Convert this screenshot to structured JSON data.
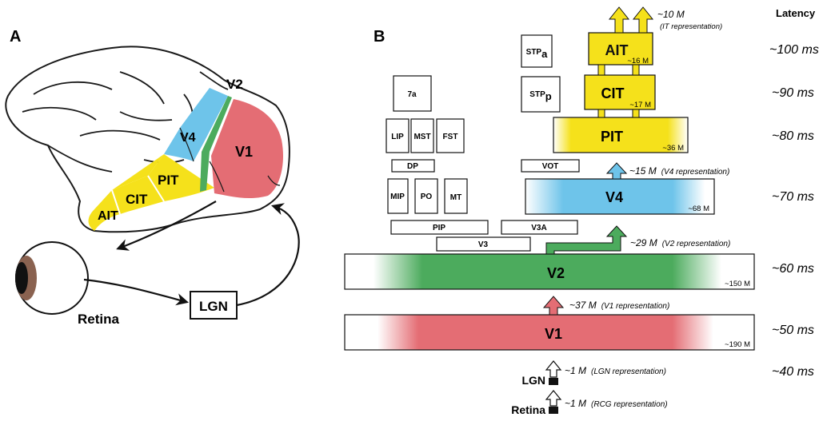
{
  "panel_a": {
    "label": "A",
    "areas": {
      "v2": "V2",
      "v4": "V4",
      "v1": "V1",
      "pit": "PIT",
      "cit": "CIT",
      "ait": "AIT"
    },
    "retina": "Retina",
    "lgn": "LGN"
  },
  "panel_b": {
    "label": "B",
    "latency_header": "Latency",
    "latencies": [
      "~100 ms",
      "~90 ms",
      "~80 ms",
      "~70 ms",
      "~60 ms",
      "~50 ms",
      "~40 ms"
    ],
    "small_areas": {
      "stpa_main": "STP",
      "stpa_sub": "a",
      "stpp_main": "STP",
      "stpp_sub": "p",
      "a7": "7a",
      "lip": "LIP",
      "mst": "MST",
      "fst": "FST",
      "dp": "DP",
      "vot": "VOT",
      "mip": "MIP",
      "po": "PO",
      "mt": "MT",
      "pip": "PIP",
      "v3a": "V3A",
      "v3": "V3"
    },
    "big_areas": {
      "ait": {
        "label": "AIT",
        "neurons": "~16 M"
      },
      "cit": {
        "label": "CIT",
        "neurons": "~17 M"
      },
      "pit": {
        "label": "PIT",
        "neurons": "~36 M"
      },
      "v4": {
        "label": "V4",
        "neurons": "~68 M"
      },
      "v2": {
        "label": "V2",
        "neurons": "~150 M"
      },
      "v1": {
        "label": "V1",
        "neurons": "~190 M"
      }
    },
    "representations": {
      "it_count": "~10 M",
      "it_label": "(IT representation)",
      "v4_count": "~15 M",
      "v4_label": "(V4 representation)",
      "v2_count": "~29 M",
      "v2_label": "(V2 representation)",
      "v1_count": "~37 M",
      "v1_label": "(V1 representation)",
      "lgn_count": "~1 M",
      "lgn_label": "(LGN representation)",
      "retina_count": "~1 M",
      "retina_label": "(RCG representation)"
    },
    "lgn": "LGN",
    "retina": "Retina"
  },
  "colors": {
    "yellow": "#f5e11b",
    "blue": "#6ec4ea",
    "green": "#4cab5d",
    "red": "#e46d74",
    "dark_green": "#2f8a3e"
  }
}
